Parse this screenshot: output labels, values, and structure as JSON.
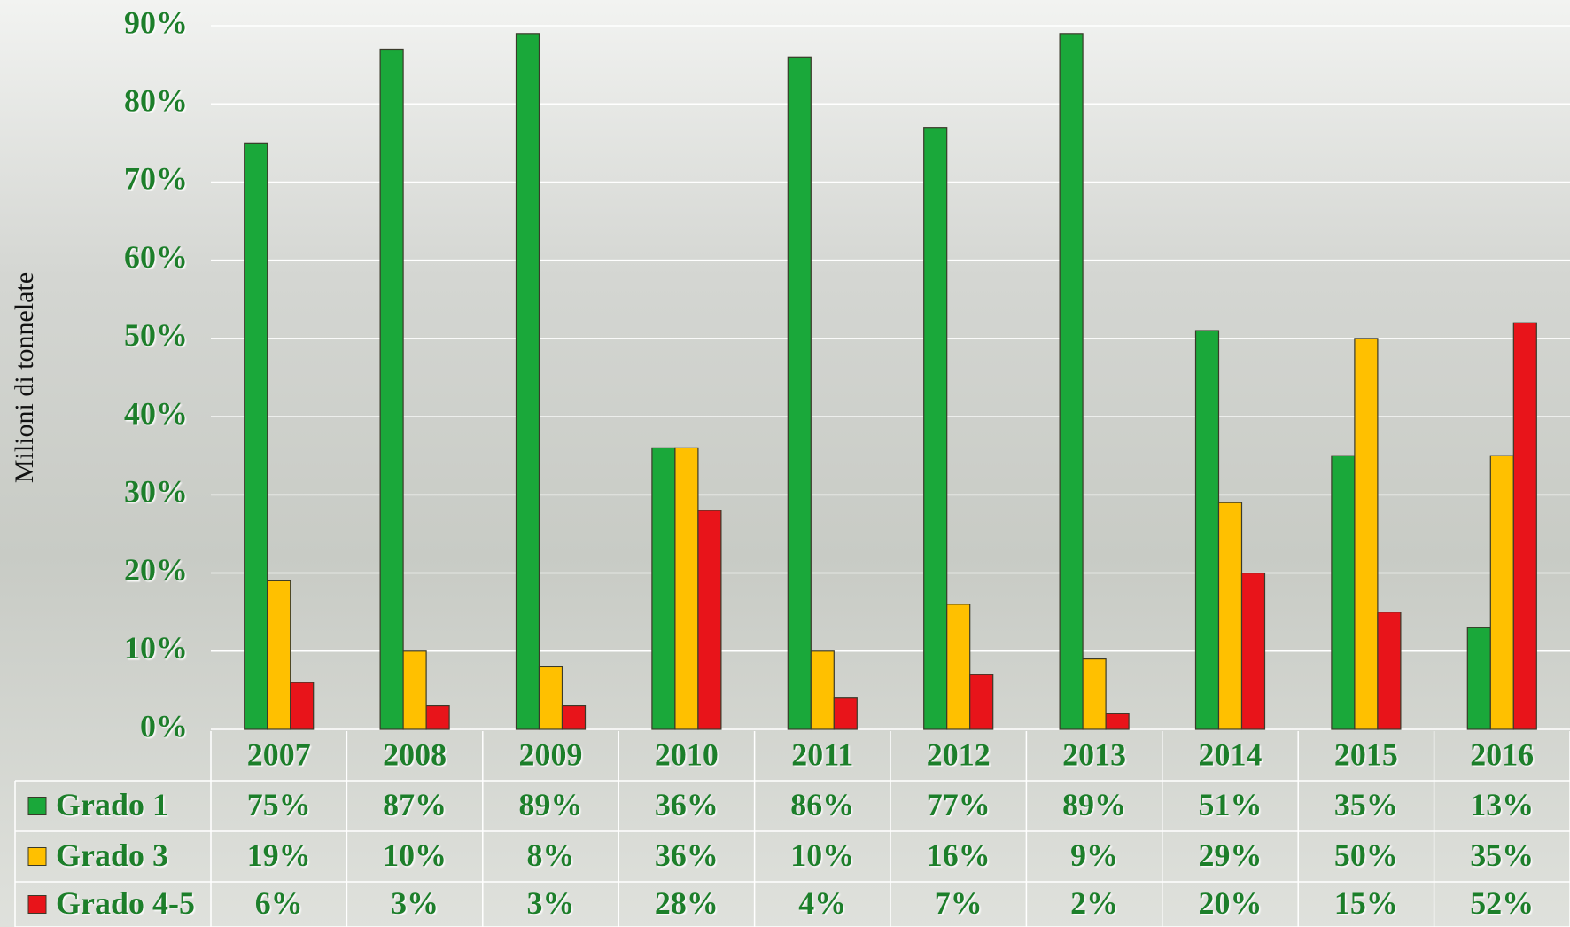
{
  "chart_data": {
    "type": "bar",
    "y_axis_label": "Milioni di tonnelate",
    "categories": [
      "2007",
      "2008",
      "2009",
      "2010",
      "2011",
      "2012",
      "2013",
      "2014",
      "2015",
      "2016"
    ],
    "series": [
      {
        "name": "Grado 1",
        "color": "#1aa83a",
        "values": [
          75,
          87,
          89,
          36,
          86,
          77,
          89,
          51,
          35,
          13
        ],
        "value_labels": [
          "75%",
          "87%",
          "89%",
          "36%",
          "86%",
          "77%",
          "89%",
          "51%",
          "35%",
          "13%"
        ]
      },
      {
        "name": "Grado 3",
        "color": "#ffc000",
        "values": [
          19,
          10,
          8,
          36,
          10,
          16,
          9,
          29,
          50,
          35
        ],
        "value_labels": [
          "19%",
          "10%",
          "8%",
          "36%",
          "10%",
          "16%",
          "9%",
          "29%",
          "50%",
          "35%"
        ]
      },
      {
        "name": "Grado 4-5",
        "color": "#e8141a",
        "values": [
          6,
          3,
          3,
          28,
          4,
          7,
          2,
          20,
          15,
          52
        ],
        "value_labels": [
          "6%",
          "3%",
          "3%",
          "28%",
          "4%",
          "7%",
          "2%",
          "20%",
          "15%",
          "52%"
        ]
      }
    ],
    "ylim": [
      0,
      90
    ],
    "yticks": [
      {
        "value": 0,
        "label": "0%"
      },
      {
        "value": 10,
        "label": "10%"
      },
      {
        "value": 20,
        "label": "20%"
      },
      {
        "value": 30,
        "label": "30%"
      },
      {
        "value": 40,
        "label": "40%"
      },
      {
        "value": 50,
        "label": "50%"
      },
      {
        "value": 60,
        "label": "60%"
      },
      {
        "value": 70,
        "label": "70%"
      },
      {
        "value": 80,
        "label": "80%"
      },
      {
        "value": 90,
        "label": "90%"
      }
    ],
    "grid": true
  }
}
